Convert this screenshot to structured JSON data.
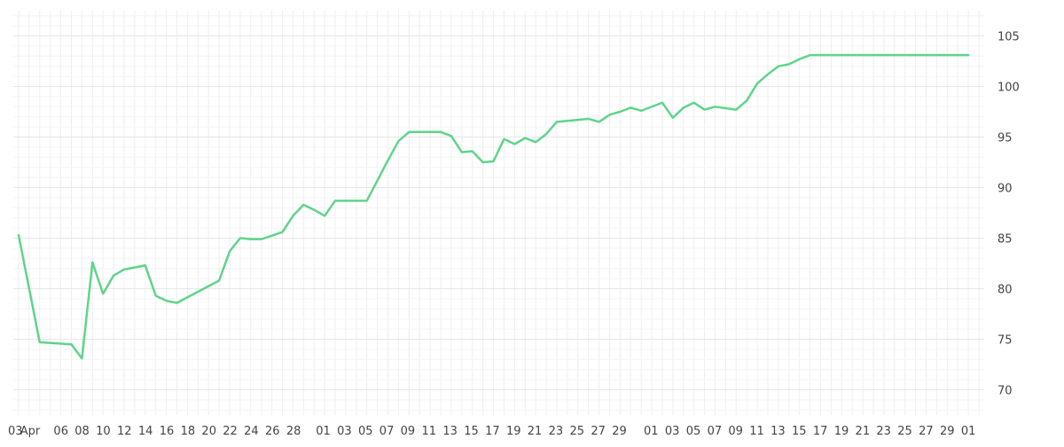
{
  "chart_data": {
    "type": "line",
    "title": "",
    "xlabel": "",
    "ylabel": "",
    "x_ticks": [
      "03",
      "Apr",
      "06",
      "08",
      "10",
      "12",
      "14",
      "16",
      "18",
      "20",
      "22",
      "24",
      "26",
      "28",
      "01",
      "03",
      "05",
      "07",
      "09",
      "11",
      "13",
      "15",
      "17",
      "19",
      "21",
      "23",
      "25",
      "27",
      "29",
      "01",
      "03",
      "05",
      "07",
      "09",
      "11",
      "13",
      "15",
      "17",
      "19",
      "21",
      "23",
      "25",
      "27",
      "29",
      "01"
    ],
    "y_ticks": [
      70,
      75,
      80,
      85,
      90,
      95,
      100,
      105
    ],
    "ylim": [
      67.5,
      107.5
    ],
    "xlim": [
      0,
      91
    ],
    "grid": true,
    "line_color": "#5fd48a",
    "grid_color": "#eeeeee",
    "series": [
      {
        "x": [
          0,
          2,
          5,
          6,
          7,
          8,
          9,
          10,
          12,
          13,
          14,
          15,
          19,
          20,
          21,
          22,
          23,
          25,
          26,
          27,
          28,
          29,
          30,
          33,
          34,
          35,
          36,
          37,
          38,
          40,
          41,
          42,
          43,
          44,
          45,
          46,
          47,
          48,
          49,
          50,
          51,
          54,
          55,
          56,
          57,
          58,
          59,
          61,
          62,
          63,
          64,
          65,
          66,
          68,
          69,
          70,
          71,
          72,
          73,
          74,
          75,
          76,
          77,
          78,
          79,
          80,
          81,
          82,
          83,
          84,
          85,
          86,
          87,
          88,
          89,
          90
        ],
        "values": [
          85.3,
          74.7,
          74.5,
          73.1,
          82.6,
          79.5,
          81.3,
          81.9,
          82.3,
          79.3,
          78.8,
          78.6,
          80.8,
          83.7,
          85.0,
          84.9,
          84.9,
          85.6,
          87.2,
          88.3,
          87.8,
          87.2,
          88.7,
          88.7,
          90.7,
          92.7,
          94.6,
          95.5,
          95.5,
          95.5,
          95.1,
          93.5,
          93.6,
          92.5,
          92.6,
          94.8,
          94.3,
          94.9,
          94.5,
          95.3,
          96.5,
          96.8,
          96.5,
          97.2,
          97.5,
          97.9,
          97.6,
          98.4,
          96.9,
          97.9,
          98.4,
          97.7,
          98.0,
          97.7,
          98.6,
          100.3,
          101.2,
          102.0,
          102.2,
          102.7,
          103.1,
          103.1,
          103.1,
          103.1,
          103.1,
          103.1,
          103.1,
          103.1,
          103.1,
          103.1,
          103.1,
          103.1,
          103.1,
          103.1,
          103.1,
          103.1
        ]
      }
    ]
  }
}
